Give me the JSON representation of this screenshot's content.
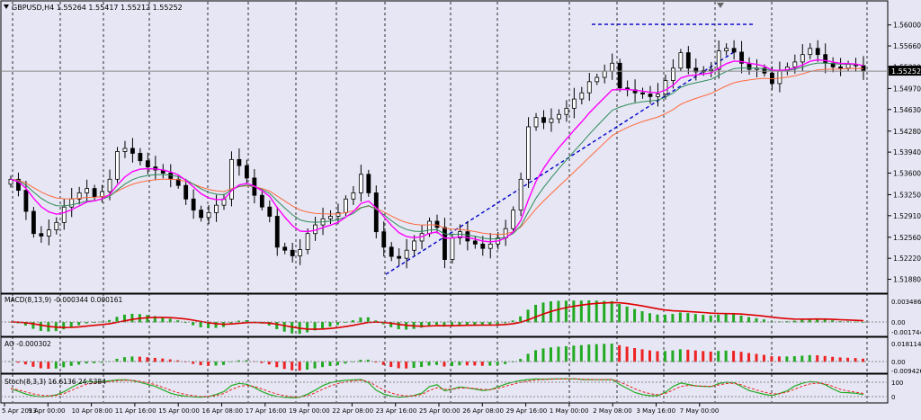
{
  "header": {
    "main_title": "GBPUSD,H4  1.55264 1.55417 1.55212 1.55252",
    "macd_title": "MACD(8,13,9) -0.000344 0.000161",
    "ao_title": "AO -0.000302",
    "stoch_title": "Stoch(8,3,3) 16.6136 24.5384"
  },
  "colors": {
    "background": "#e6e6f4",
    "bull_candle": "#ffffff",
    "bear_candle": "#000000",
    "ema_fast": "#ff00ff",
    "ema_mid": "#2e8b57",
    "ema_slow": "#ff6a3d",
    "trendline": "#0000cc",
    "hist_up": "#22aa22",
    "hist_down": "#ee2222",
    "macd_signal": "#dd0000",
    "stoch_main": "#22aa22",
    "stoch_signal": "#ee2222"
  },
  "chart_data": [
    {
      "type": "candlestick",
      "symbol": "GBPUSD",
      "timeframe": "H4",
      "ohlc_current": {
        "open": 1.55264,
        "high": 1.55417,
        "low": 1.55212,
        "close": 1.55252
      },
      "current_price_label": "1.55252",
      "ylim": [
        1.518,
        1.562
      ],
      "y_ticks": [
        "1.56000",
        "1.55660",
        "1.55320",
        "1.54970",
        "1.54630",
        "1.54280",
        "1.53940",
        "1.53600",
        "1.53250",
        "1.52910",
        "1.52560",
        "1.52220",
        "1.51880"
      ],
      "x_ticks": [
        "5 Apr 2013",
        "9 Apr 00:00",
        "10 Apr 08:00",
        "11 Apr 16:00",
        "15 Apr 00:00",
        "16 Apr 08:00",
        "17 Apr 16:00",
        "19 Apr 00:00",
        "22 Apr 08:00",
        "23 Apr 16:00",
        "25 Apr 00:00",
        "26 Apr 08:00",
        "29 Apr 16:00",
        "1 May 00:00",
        "2 May 08:00",
        "3 May 16:00",
        "7 May 00:00"
      ],
      "series": [
        {
          "name": "ohlc",
          "closes": [
            1.535,
            1.5332,
            1.5298,
            1.5262,
            1.5258,
            1.5268,
            1.528,
            1.5305,
            1.5318,
            1.5328,
            1.5335,
            1.5322,
            1.533,
            1.535,
            1.5395,
            1.54,
            1.5392,
            1.538,
            1.537,
            1.5365,
            1.536,
            1.535,
            1.534,
            1.5318,
            1.53,
            1.5288,
            1.5296,
            1.5308,
            1.5318,
            1.5382,
            1.5372,
            1.5352,
            1.5324,
            1.5305,
            1.529,
            1.524,
            1.5235,
            1.5226,
            1.5236,
            1.5262,
            1.5276,
            1.5286,
            1.529,
            1.5296,
            1.5318,
            1.5328,
            1.5358,
            1.5328,
            1.5265,
            1.524,
            1.5225,
            1.5222,
            1.5235,
            1.525,
            1.5262,
            1.5282,
            1.5272,
            1.522,
            1.5255,
            1.5265,
            1.525,
            1.5245,
            1.5238,
            1.5245,
            1.5255,
            1.527,
            1.53,
            1.535,
            1.5435,
            1.545,
            1.5442,
            1.5448,
            1.5455,
            1.5465,
            1.548,
            1.549,
            1.5508,
            1.5515,
            1.5525,
            1.5538,
            1.5498,
            1.5495,
            1.549,
            1.5488,
            1.5484,
            1.5488,
            1.551,
            1.553,
            1.5555,
            1.553,
            1.5524,
            1.5526,
            1.5528,
            1.5558,
            1.5562,
            1.5556,
            1.5538,
            1.5528,
            1.553,
            1.5522,
            1.5505,
            1.5525,
            1.5532,
            1.554,
            1.5552,
            1.5562,
            1.5552,
            1.5538,
            1.5532,
            1.553,
            1.5536,
            1.5534,
            1.5525
          ]
        }
      ],
      "overlays": [
        {
          "name": "ema_fast",
          "period": 8
        },
        {
          "name": "ema_mid",
          "period": 13
        },
        {
          "name": "ema_slow",
          "period": 21
        }
      ],
      "annotations": [
        {
          "type": "horizontal_resistance",
          "value": 1.5601
        },
        {
          "type": "rising_support",
          "from": 1.5196,
          "to": 1.5556
        }
      ]
    },
    {
      "type": "bar",
      "name": "MACD(8,13,9)",
      "values_shown": {
        "macd": -0.000344,
        "signal": 0.000161
      },
      "y_ticks": [
        "0.003486",
        "0.00",
        "-0.001744"
      ]
    },
    {
      "type": "bar",
      "name": "AO",
      "values_shown": {
        "ao": -0.000302
      },
      "y_ticks": [
        "0.018114",
        "0.00",
        "-0.009426"
      ]
    },
    {
      "type": "line",
      "name": "Stoch(8,3,3)",
      "values_shown": {
        "main": 16.6136,
        "signal": 24.5384
      },
      "y_ticks": [
        "100",
        "0"
      ]
    }
  ]
}
